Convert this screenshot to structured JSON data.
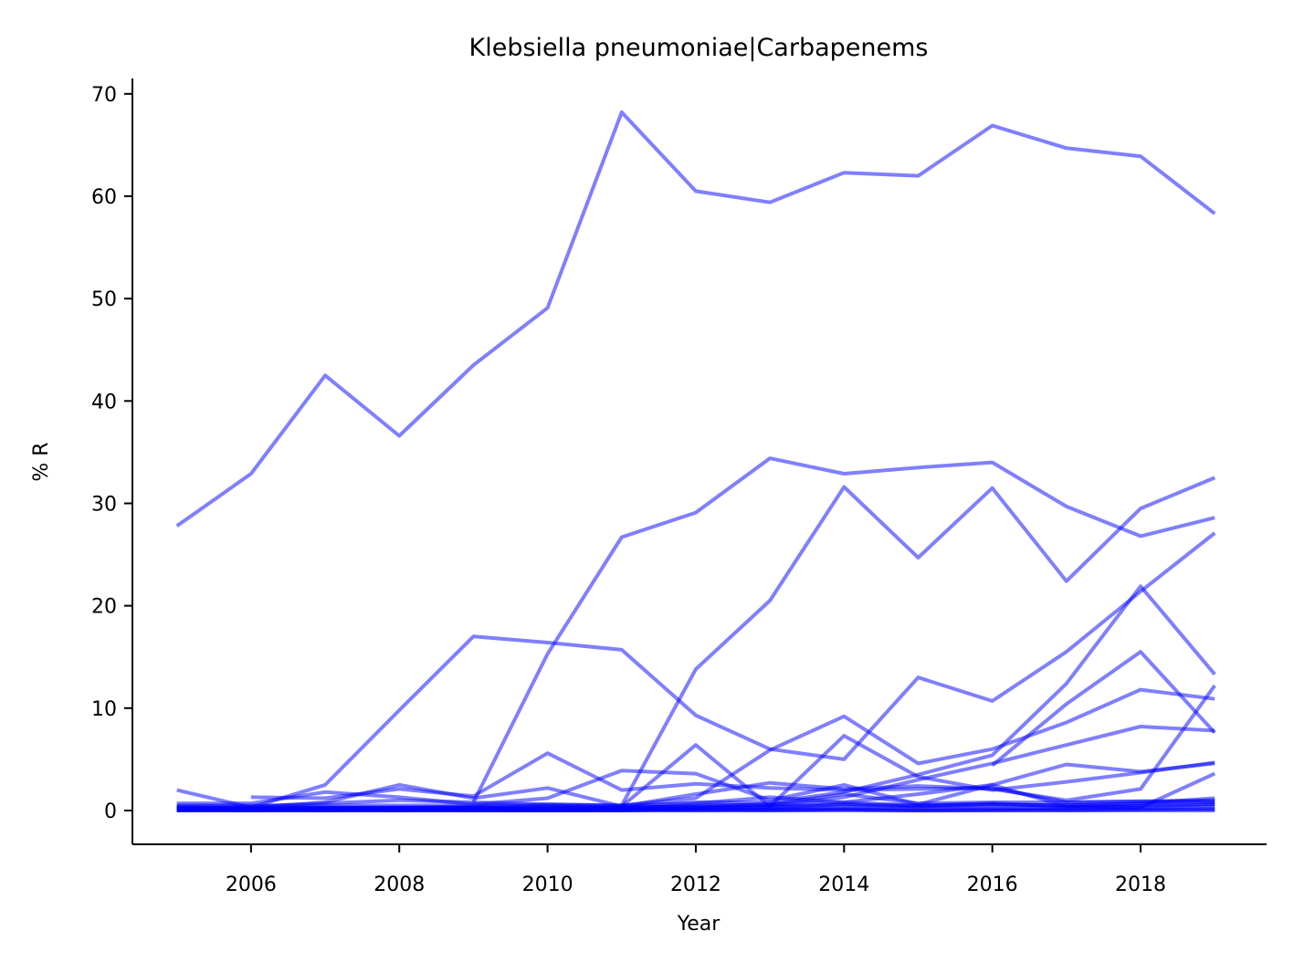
{
  "chart_data": {
    "type": "line",
    "title": "Klebsiella pneumoniae|Carbapenems",
    "xlabel": "Year",
    "ylabel": "% R",
    "xlim": [
      2004.4,
      2019.7
    ],
    "ylim": [
      -3.3,
      71.5
    ],
    "xticks": [
      2006,
      2008,
      2010,
      2012,
      2014,
      2016,
      2018
    ],
    "yticks": [
      0,
      10,
      20,
      30,
      40,
      50,
      60,
      70
    ],
    "grid": false,
    "legend": "none",
    "line_color": "#0000ff",
    "line_opacity": 0.5,
    "x": [
      2005,
      2006,
      2007,
      2008,
      2009,
      2010,
      2011,
      2012,
      2013,
      2014,
      2015,
      2016,
      2017,
      2018,
      2019
    ],
    "series": [
      {
        "values": [
          27.8,
          32.9,
          42.5,
          36.6,
          43.5,
          49.1,
          68.2,
          60.5,
          59.4,
          62.3,
          62.0,
          66.9,
          64.7,
          63.9,
          58.3
        ]
      },
      {
        "values": [
          null,
          null,
          null,
          null,
          0.8,
          15.3,
          26.7,
          29.1,
          34.4,
          32.9,
          33.5,
          34.0,
          29.7,
          26.8,
          28.6
        ]
      },
      {
        "values": [
          null,
          null,
          null,
          null,
          null,
          null,
          0.5,
          13.8,
          20.5,
          31.6,
          24.7,
          31.5,
          22.4,
          29.5,
          32.5
        ]
      },
      {
        "values": [
          0.3,
          0.3,
          2.5,
          9.8,
          17.0,
          16.4,
          15.7,
          9.3,
          6.0,
          5.0,
          13.0,
          10.7,
          15.5,
          21.4,
          27.1
        ]
      },
      {
        "values": [
          0.2,
          0.2,
          0.2,
          0.2,
          0.3,
          0.2,
          0.3,
          0.8,
          0.8,
          1.8,
          3.5,
          5.4,
          12.4,
          21.9,
          13.3
        ]
      },
      {
        "values": [
          null,
          null,
          null,
          null,
          null,
          null,
          null,
          null,
          null,
          null,
          null,
          4.4,
          10.4,
          15.5,
          7.6
        ]
      },
      {
        "values": [
          0.5,
          0.5,
          0.5,
          0.5,
          0.5,
          0.6,
          0.5,
          1.2,
          5.9,
          9.2,
          4.6,
          6.0,
          8.6,
          11.8,
          10.9
        ]
      },
      {
        "values": [
          0.2,
          0.2,
          0.2,
          0.2,
          0.2,
          0.2,
          0.3,
          0.4,
          0.5,
          1.3,
          3.0,
          4.6,
          6.4,
          8.2,
          7.8
        ]
      },
      {
        "values": [
          0.3,
          0.3,
          0.3,
          0.3,
          0.3,
          0.4,
          0.3,
          0.4,
          0.6,
          0.8,
          1.6,
          2.5,
          4.5,
          3.8,
          4.6
        ]
      },
      {
        "values": [
          2.0,
          0.3,
          0.8,
          2.5,
          1.2,
          2.2,
          0.4,
          6.4,
          0.4,
          7.3,
          3.3,
          2.0,
          2.8,
          3.7,
          4.7
        ]
      },
      {
        "values": [
          null,
          1.3,
          1.2,
          2.1,
          1.4,
          5.6,
          2.0,
          2.6,
          2.2,
          2.0,
          2.1,
          2.2,
          0.8,
          0.9,
          1.0
        ]
      },
      {
        "values": [
          0.7,
          0.7,
          1.8,
          1.3,
          0.6,
          1.2,
          3.9,
          3.6,
          1.0,
          2.5,
          0.6,
          2.5,
          0.4,
          0.4,
          0.6
        ]
      },
      {
        "values": [
          0.2,
          0.2,
          0.3,
          0.3,
          0.4,
          0.5,
          0.4,
          1.6,
          2.7,
          2.1,
          2.4,
          2.1,
          1.0,
          2.1,
          12.2
        ]
      },
      {
        "values": [
          0.1,
          0.1,
          0.1,
          0.1,
          0.1,
          0.1,
          0.1,
          0.3,
          0.3,
          0.4,
          0.3,
          0.4,
          0.3,
          0.3,
          3.6
        ]
      },
      {
        "values": [
          0.4,
          0.4,
          0.7,
          1.0,
          0.8,
          0.6,
          0.5,
          0.7,
          1.3,
          0.8,
          0.5,
          0.7,
          0.4,
          0.5,
          0.6
        ]
      },
      {
        "values": [
          0.1,
          0.1,
          0.1,
          0.1,
          0.1,
          0.1,
          0.1,
          0.2,
          0.3,
          0.6,
          0.4,
          0.6,
          0.5,
          0.7,
          1.2
        ]
      },
      {
        "values": [
          0.0,
          0.0,
          0.0,
          0.0,
          0.0,
          0.0,
          0.0,
          0.1,
          0.1,
          0.2,
          0.2,
          0.2,
          0.2,
          0.3,
          0.4
        ]
      },
      {
        "values": [
          0.0,
          0.0,
          0.0,
          0.0,
          0.0,
          0.0,
          0.0,
          0.0,
          0.0,
          0.0,
          0.0,
          0.0,
          0.0,
          0.0,
          0.0
        ]
      },
      {
        "values": [
          0.1,
          0.0,
          0.1,
          0.0,
          0.1,
          0.0,
          0.1,
          0.0,
          0.1,
          0.1,
          0.0,
          0.1,
          0.0,
          0.1,
          0.1
        ]
      },
      {
        "values": [
          0.2,
          0.1,
          0.2,
          0.3,
          0.2,
          0.3,
          0.2,
          0.5,
          0.6,
          1.6,
          0.7,
          0.8,
          0.8,
          0.9,
          0.9
        ]
      },
      {
        "values": [
          0.0,
          0.1,
          0.0,
          0.1,
          0.0,
          0.0,
          0.0,
          0.1,
          0.0,
          0.1,
          0.0,
          0.0,
          0.1,
          0.1,
          0.2
        ]
      },
      {
        "values": [
          0.3,
          0.2,
          0.3,
          0.2,
          0.3,
          0.2,
          0.2,
          0.3,
          0.4,
          0.6,
          0.5,
          0.6,
          0.5,
          0.7,
          0.8
        ]
      }
    ]
  }
}
